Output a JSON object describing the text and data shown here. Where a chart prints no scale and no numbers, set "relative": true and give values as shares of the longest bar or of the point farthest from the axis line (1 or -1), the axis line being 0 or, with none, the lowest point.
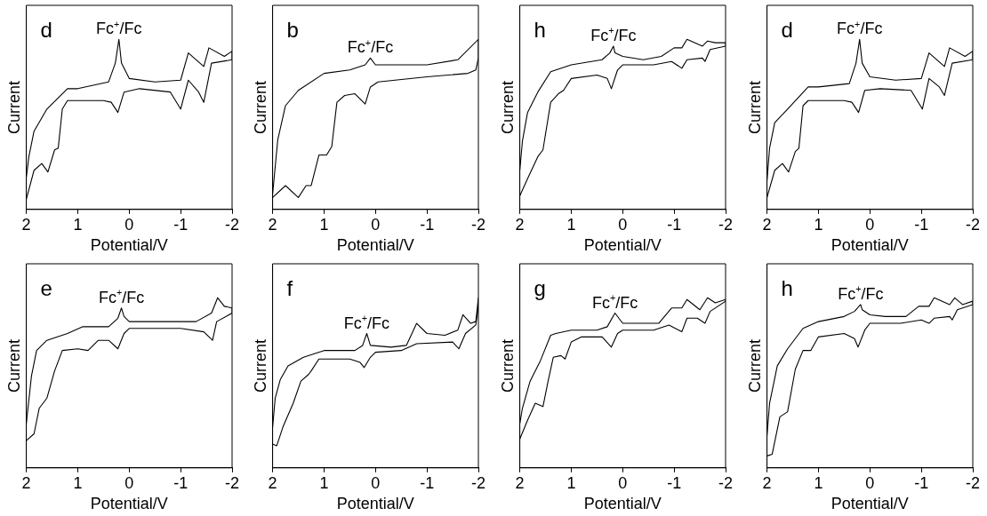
{
  "chart_data": [
    {
      "type": "line",
      "title": "d",
      "xlabel": "Potential/V",
      "ylabel": "Current",
      "relative": true,
      "xlim": [
        2,
        -2
      ],
      "xticks": [
        2,
        1,
        0,
        -1,
        -2
      ],
      "tick_labels": "x",
      "annotations": [
        {
          "text": "Fc$^{+}$/Fc",
          "x": 0.2,
          "y": 1
        }
      ],
      "series": [
        {
          "color": "#000000",
          "x": [
            2,
            1.85,
            1.7,
            1.58,
            1.45,
            1.38,
            1.3,
            1.2,
            0.5,
            0.35,
            0.22,
            0.1,
            -0.2,
            -0.8,
            -1.0,
            -1.15,
            -1.35,
            -1.45,
            -1.6,
            -2,
            -2,
            -1.85,
            -1.55,
            -1.45,
            -1.15,
            -1.0,
            -0.5,
            0,
            0.15,
            0.2,
            0.27,
            0.4,
            1.0,
            1.2,
            1.6,
            1.85,
            1.95,
            2
          ],
          "values": [
            0.06,
            0.23,
            0.27,
            0.22,
            0.35,
            0.36,
            0.59,
            0.64,
            0.64,
            0.63,
            0.57,
            0.69,
            0.71,
            0.69,
            0.59,
            0.76,
            0.69,
            0.63,
            0.86,
            0.88,
            0.93,
            0.9,
            0.95,
            0.84,
            0.92,
            0.76,
            0.75,
            0.77,
            0.86,
            1,
            0.86,
            0.75,
            0.71,
            0.71,
            0.59,
            0.46,
            0.31,
            0.19
          ]
        }
      ]
    },
    {
      "type": "line",
      "title": "b",
      "xlabel": "Potential/V",
      "ylabel": "Current",
      "relative": true,
      "xlim": [
        2,
        -2
      ],
      "xticks": [
        2,
        1,
        0,
        -1,
        -2
      ],
      "tick_labels": "x",
      "annotations": [
        {
          "text": "Fc$^{+}$/Fc",
          "x": 0.1,
          "y": 0.89
        }
      ],
      "series": [
        {
          "color": "#000000",
          "x": [
            2,
            1.75,
            1.5,
            1.35,
            1.25,
            1.1,
            0.95,
            0.85,
            0.75,
            0.6,
            0.4,
            0.2,
            0.1,
            -0.05,
            -1,
            -1.8,
            -1.95,
            -2,
            -2,
            -1.6,
            -1.0,
            0,
            0.1,
            0.2,
            0.5,
            1.0,
            1.5,
            1.75,
            1.9,
            2
          ],
          "values": [
            0.07,
            0.14,
            0.07,
            0.14,
            0.14,
            0.32,
            0.32,
            0.37,
            0.63,
            0.67,
            0.68,
            0.62,
            0.72,
            0.75,
            0.78,
            0.8,
            0.82,
            0.89,
            1,
            0.88,
            0.85,
            0.85,
            0.89,
            0.85,
            0.82,
            0.8,
            0.7,
            0.61,
            0.41,
            0.09
          ]
        }
      ]
    },
    {
      "type": "line",
      "title": "h",
      "xlabel": "Potential/V",
      "ylabel": "Current",
      "relative": true,
      "xlim": [
        2,
        -2
      ],
      "xticks": [
        2,
        1,
        0,
        -1,
        -2
      ],
      "tick_labels": "x",
      "annotations": [
        {
          "text": "Fc$^{+}$/Fc",
          "x": 0.18,
          "y": 0.96
        }
      ],
      "series": [
        {
          "color": "#000000",
          "x": [
            2,
            1.85,
            1.65,
            1.55,
            1.4,
            1.25,
            1.15,
            1.0,
            0.5,
            0.3,
            0.22,
            0.1,
            0,
            -0.6,
            -0.95,
            -1.15,
            -1.25,
            -1.55,
            -1.6,
            -1.7,
            -2,
            -2,
            -1.8,
            -1.65,
            -1.55,
            -1.25,
            -1.15,
            -1.0,
            -0.75,
            -0.4,
            0,
            0.15,
            0.18,
            0.25,
            0.4,
            1.0,
            1.4,
            1.65,
            1.85,
            1.95,
            2
          ],
          "values": [
            0.08,
            0.18,
            0.31,
            0.35,
            0.63,
            0.68,
            0.7,
            0.77,
            0.79,
            0.77,
            0.71,
            0.82,
            0.85,
            0.85,
            0.87,
            0.83,
            0.88,
            0.89,
            0.87,
            0.94,
            0.96,
            0.98,
            0.98,
            0.99,
            0.96,
            1,
            0.95,
            0.95,
            0.9,
            0.88,
            0.9,
            0.92,
            0.96,
            0.92,
            0.88,
            0.85,
            0.81,
            0.69,
            0.57,
            0.4,
            0.23
          ]
        }
      ]
    },
    {
      "type": "line",
      "title": "d",
      "xlabel": "Potential/V",
      "ylabel": "Current",
      "relative": true,
      "xlim": [
        2,
        -2
      ],
      "xticks": [
        2,
        1,
        0,
        -1,
        -2
      ],
      "tick_labels": "x",
      "annotations": [
        {
          "text": "Fc$^{+}$/Fc",
          "x": 0.2,
          "y": 1
        }
      ],
      "series": [
        {
          "color": "#000000",
          "x": [
            2,
            1.85,
            1.7,
            1.58,
            1.45,
            1.38,
            1.3,
            1.2,
            0.5,
            0.35,
            0.22,
            0.1,
            -0.2,
            -0.8,
            -1.02,
            -1.15,
            -1.35,
            -1.45,
            -1.6,
            -2,
            -2,
            -1.85,
            -1.55,
            -1.45,
            -1.15,
            -1.0,
            -0.5,
            0,
            0.15,
            0.2,
            0.27,
            0.4,
            1.0,
            1.2,
            1.6,
            1.85,
            1.95,
            2
          ],
          "values": [
            0.07,
            0.23,
            0.27,
            0.22,
            0.34,
            0.36,
            0.61,
            0.64,
            0.64,
            0.63,
            0.57,
            0.7,
            0.71,
            0.7,
            0.59,
            0.77,
            0.72,
            0.67,
            0.86,
            0.88,
            0.93,
            0.9,
            0.95,
            0.84,
            0.92,
            0.77,
            0.76,
            0.78,
            0.86,
            1,
            0.86,
            0.74,
            0.72,
            0.72,
            0.59,
            0.51,
            0.36,
            0.17
          ]
        }
      ]
    },
    {
      "type": "line",
      "title": "e",
      "xlabel": "Potential/V",
      "ylabel": "Current",
      "relative": true,
      "xlim": [
        2,
        -2
      ],
      "xticks": [
        2,
        1,
        0,
        -1,
        -2
      ],
      "tick_labels": "x",
      "annotations": [
        {
          "text": "Fc$^{+}$/Fc",
          "x": 0.15,
          "y": 0.94
        }
      ],
      "series": [
        {
          "color": "#000000",
          "x": [
            2,
            1.85,
            1.75,
            1.6,
            1.45,
            1.3,
            1.0,
            0.8,
            0.6,
            0.4,
            0.22,
            0.1,
            0,
            -1,
            -1.45,
            -1.62,
            -1.7,
            -2,
            -2,
            -1.85,
            -1.72,
            -1.6,
            -1.3,
            0,
            0.1,
            0.15,
            0.22,
            0.4,
            0.9,
            1.2,
            1.6,
            1.8,
            1.9,
            2
          ],
          "values": [
            0.16,
            0.2,
            0.35,
            0.41,
            0.57,
            0.69,
            0.7,
            0.69,
            0.75,
            0.75,
            0.7,
            0.79,
            0.82,
            0.82,
            0.8,
            0.75,
            0.86,
            0.91,
            0.94,
            0.95,
            1,
            0.91,
            0.86,
            0.86,
            0.89,
            0.94,
            0.88,
            0.83,
            0.83,
            0.79,
            0.75,
            0.69,
            0.54,
            0.26
          ]
        }
      ]
    },
    {
      "type": "line",
      "title": "f",
      "xlabel": "Potential/V",
      "ylabel": "Current",
      "relative": true,
      "xlim": [
        2,
        -2
      ],
      "xticks": [
        2,
        1,
        0,
        -1,
        -2
      ],
      "tick_labels": "x",
      "annotations": [
        {
          "text": "Fc$^{+}$/Fc",
          "x": 0.17,
          "y": 0.79
        }
      ],
      "series": [
        {
          "color": "#000000",
          "x": [
            2,
            1.92,
            1.8,
            1.6,
            1.45,
            1.3,
            1.25,
            1.1,
            0.5,
            0.3,
            0.22,
            0.1,
            0,
            -0.5,
            -0.8,
            -1.5,
            -1.62,
            -1.75,
            -1.95,
            -2,
            -2,
            -1.95,
            -1.85,
            -1.7,
            -1.6,
            -1.35,
            -1.0,
            -0.8,
            -0.6,
            -0.3,
            0.1,
            0.17,
            0.25,
            0.4,
            1,
            1.4,
            1.7,
            1.85,
            1.95,
            2
          ],
          "values": [
            0.14,
            0.13,
            0.24,
            0.38,
            0.51,
            0.55,
            0.57,
            0.64,
            0.64,
            0.62,
            0.59,
            0.65,
            0.68,
            0.69,
            0.73,
            0.74,
            0.7,
            0.79,
            0.84,
            0.95,
            1,
            0.86,
            0.85,
            0.9,
            0.81,
            0.78,
            0.79,
            0.85,
            0.72,
            0.71,
            0.72,
            0.79,
            0.72,
            0.69,
            0.69,
            0.65,
            0.6,
            0.52,
            0.41,
            0.24
          ]
        }
      ]
    },
    {
      "type": "line",
      "title": "g",
      "xlabel": "Potential/V",
      "ylabel": "Current",
      "relative": true,
      "xlim": [
        2,
        -2
      ],
      "xticks": [
        2,
        1,
        0,
        -1,
        -2
      ],
      "tick_labels": "x",
      "annotations": [
        {
          "text": "Fc$^{+}$/Fc",
          "x": 0.15,
          "y": 0.91
        }
      ],
      "series": [
        {
          "color": "#000000",
          "x": [
            2,
            1.85,
            1.7,
            1.55,
            1.45,
            1.35,
            1.2,
            1.12,
            1.0,
            0.8,
            0.4,
            0.22,
            0.1,
            0,
            -0.6,
            -0.9,
            -1.15,
            -1.25,
            -1.45,
            -1.6,
            -1.7,
            -2,
            -2,
            -1.8,
            -1.65,
            -1.5,
            -1.25,
            -1.15,
            -0.95,
            -0.7,
            -0.3,
            0,
            0.15,
            0.3,
            0.5,
            1.0,
            1.3,
            1.4,
            1.6,
            1.8,
            1.95,
            2
          ],
          "values": [
            0.17,
            0.28,
            0.38,
            0.36,
            0.51,
            0.65,
            0.66,
            0.64,
            0.74,
            0.77,
            0.77,
            0.71,
            0.79,
            0.81,
            0.81,
            0.84,
            0.8,
            0.88,
            0.88,
            0.85,
            0.92,
            0.98,
            0.99,
            0.97,
            1,
            0.93,
            0.99,
            0.94,
            0.94,
            0.85,
            0.85,
            0.85,
            0.91,
            0.83,
            0.81,
            0.81,
            0.79,
            0.78,
            0.63,
            0.51,
            0.35,
            0.26
          ]
        }
      ]
    },
    {
      "type": "line",
      "title": "h",
      "xlabel": "Potential/V",
      "ylabel": "Current",
      "relative": true,
      "xlim": [
        2,
        -2
      ],
      "xticks": [
        2,
        1,
        0,
        -1,
        -2
      ],
      "tick_labels": "x",
      "annotations": [
        {
          "text": "Fc$^{+}$/Fc",
          "x": 0.18,
          "y": 0.96
        }
      ],
      "series": [
        {
          "color": "#000000",
          "x": [
            2,
            1.9,
            1.75,
            1.6,
            1.45,
            1.3,
            1.15,
            1.0,
            0.5,
            0.3,
            0.23,
            0.1,
            0,
            -0.6,
            -1,
            -1.15,
            -1.25,
            -1.55,
            -1.6,
            -1.7,
            -2,
            -2,
            -1.8,
            -1.65,
            -1.55,
            -1.25,
            -1.15,
            -0.95,
            -0.7,
            -0.3,
            0,
            0.15,
            0.18,
            0.3,
            0.5,
            1.0,
            1.3,
            1.6,
            1.8,
            1.95,
            2
          ],
          "values": [
            0.07,
            0.08,
            0.3,
            0.33,
            0.58,
            0.69,
            0.69,
            0.77,
            0.79,
            0.76,
            0.71,
            0.81,
            0.85,
            0.85,
            0.87,
            0.85,
            0.88,
            0.89,
            0.87,
            0.93,
            0.96,
            0.98,
            0.96,
            1,
            0.96,
            1,
            0.95,
            0.95,
            0.89,
            0.89,
            0.9,
            0.93,
            0.96,
            0.92,
            0.89,
            0.86,
            0.82,
            0.7,
            0.6,
            0.38,
            0.19
          ]
        }
      ]
    }
  ]
}
